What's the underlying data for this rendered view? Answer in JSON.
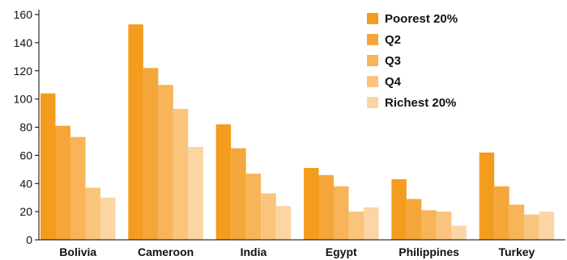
{
  "chart_data": {
    "type": "bar",
    "categories": [
      "Bolivia",
      "Cameroon",
      "India",
      "Egypt",
      "Philippines",
      "Turkey"
    ],
    "series": [
      {
        "name": "Poorest 20%",
        "color": "#F39C1E",
        "values": [
          104,
          153,
          82,
          51,
          43,
          62
        ]
      },
      {
        "name": "Q2",
        "color": "#F5A63A",
        "values": [
          81,
          122,
          65,
          46,
          29,
          38
        ]
      },
      {
        "name": "Q3",
        "color": "#F7B458",
        "values": [
          73,
          110,
          47,
          38,
          21,
          25
        ]
      },
      {
        "name": "Q4",
        "color": "#F9C47C",
        "values": [
          37,
          93,
          33,
          20,
          20,
          18
        ]
      },
      {
        "name": "Richest 20%",
        "color": "#FBD5A3",
        "values": [
          30,
          66,
          24,
          23,
          10,
          20
        ]
      }
    ],
    "y_ticks": [
      0,
      20,
      40,
      60,
      80,
      100,
      120,
      140,
      160
    ],
    "ylim": [
      0,
      160
    ],
    "grid": false,
    "legend_position": "top-right"
  }
}
